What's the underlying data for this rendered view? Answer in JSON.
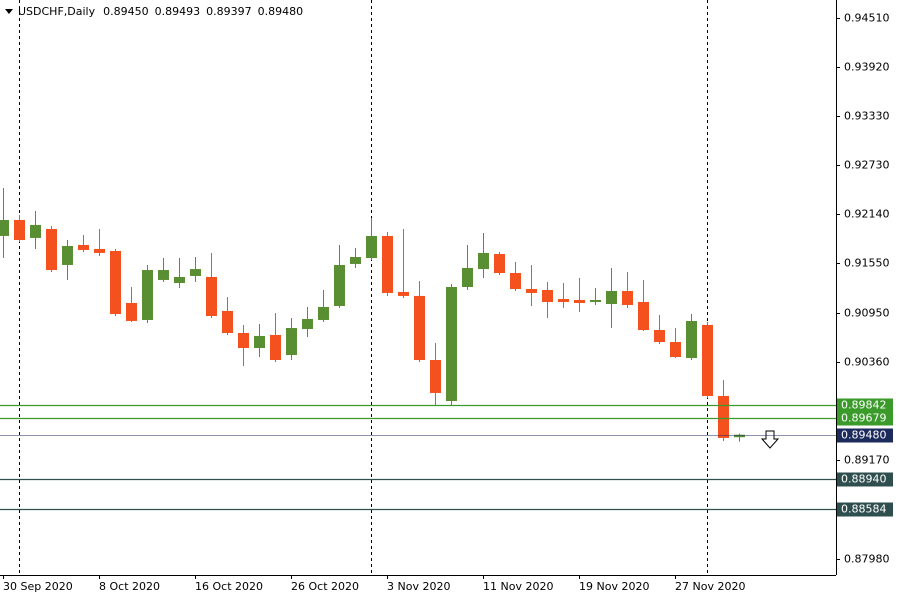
{
  "chart_data": {
    "type": "candlestick",
    "header": {
      "symbol": "USDCHF,Daily",
      "quote": [
        "0.89450",
        "0.89493",
        "0.89397",
        "0.89480"
      ]
    },
    "categories": [
      "30 Sep 2020",
      null,
      null,
      null,
      null,
      null,
      "8 Oct 2020",
      null,
      null,
      null,
      null,
      null,
      "16 Oct 2020",
      null,
      null,
      null,
      null,
      null,
      "26 Oct 2020",
      null,
      null,
      null,
      null,
      null,
      "3 Nov 2020",
      null,
      null,
      null,
      null,
      null,
      "11 Nov 2020",
      null,
      null,
      null,
      null,
      null,
      "19 Nov 2020",
      null,
      null,
      null,
      null,
      null,
      "27 Nov 2020",
      null,
      null,
      null,
      null
    ],
    "open": [
      0.91879,
      0.92072,
      0.91855,
      0.91963,
      0.91529,
      0.9177,
      0.91722,
      0.91698,
      0.9107,
      0.90865,
      0.91348,
      0.91311,
      0.91396,
      0.91384,
      0.90974,
      0.90708,
      0.90527,
      0.90684,
      0.90442,
      0.90756,
      0.90865,
      0.91034,
      0.91541,
      0.91613,
      0.91879,
      0.91203,
      0.91155,
      0.90382,
      0.89887,
      0.91263,
      0.9148,
      0.91661,
      0.91432,
      0.91239,
      0.91227,
      0.91118,
      0.91106,
      0.91082,
      0.91058,
      0.91215,
      0.91082,
      0.90744,
      0.90599,
      0.90406,
      0.90805,
      0.89948,
      0.8945
    ],
    "high": [
      0.92458,
      0.92132,
      0.9218,
      0.91999,
      0.9183,
      0.91891,
      0.91963,
      0.91722,
      0.91263,
      0.91529,
      0.91613,
      0.91613,
      0.91625,
      0.91674,
      0.91143,
      0.90805,
      0.90817,
      0.90949,
      0.90889,
      0.91022,
      0.91227,
      0.9177,
      0.91734,
      0.92096,
      0.91927,
      0.91963,
      0.91336,
      0.90587,
      0.91299,
      0.9177,
      0.91915,
      0.91686,
      0.91565,
      0.91529,
      0.91324,
      0.91311,
      0.91372,
      0.91251,
      0.91493,
      0.91444,
      0.91348,
      0.90925,
      0.90768,
      0.90937,
      0.90841,
      0.90141,
      0.89493
    ],
    "low": [
      0.91613,
      0.91806,
      0.91722,
      0.91444,
      0.91348,
      0.91686,
      0.91637,
      0.90913,
      0.90841,
      0.90829,
      0.91324,
      0.91251,
      0.91324,
      0.90889,
      0.90684,
      0.9031,
      0.90418,
      0.90358,
      0.90382,
      0.9066,
      0.90841,
      0.9101,
      0.91493,
      0.91589,
      0.91155,
      0.9113,
      0.90358,
      0.89827,
      0.89839,
      0.91227,
      0.91372,
      0.91408,
      0.91215,
      0.91034,
      0.90889,
      0.9101,
      0.90961,
      0.91046,
      0.90768,
      0.9101,
      0.90732,
      0.90575,
      0.90406,
      0.90382,
      0.89923,
      0.89404,
      0.89397
    ],
    "close": [
      0.92072,
      0.9183,
      0.92012,
      0.91468,
      0.91758,
      0.9171,
      0.91674,
      0.90937,
      0.90853,
      0.91468,
      0.91468,
      0.91384,
      0.9148,
      0.90913,
      0.90708,
      0.90527,
      0.90672,
      0.90382,
      0.90768,
      0.90877,
      0.91022,
      0.91529,
      0.91625,
      0.91879,
      0.91191,
      0.91155,
      0.90382,
      0.89984,
      0.91263,
      0.91493,
      0.91674,
      0.91432,
      0.91239,
      0.91191,
      0.91082,
      0.91082,
      0.9107,
      0.91106,
      0.91215,
      0.91046,
      0.90744,
      0.90599,
      0.90418,
      0.90853,
      0.89948,
      0.89441,
      0.8948
    ],
    "up_color": "#5a8e32",
    "down_color": "#f4511e",
    "ylim": [
      0.87787,
      0.94727
    ],
    "yticks": [
      {
        "value": 0.9451,
        "label": "0.94510"
      },
      {
        "value": 0.9392,
        "label": "0.93920"
      },
      {
        "value": 0.9333,
        "label": "0.93330"
      },
      {
        "value": 0.9273,
        "label": "0.92730"
      },
      {
        "value": 0.9214,
        "label": "0.92140"
      },
      {
        "value": 0.9155,
        "label": "0.91550"
      },
      {
        "value": 0.9095,
        "label": "0.90950"
      },
      {
        "value": 0.9036,
        "label": "0.90360"
      },
      {
        "value": 0.8917,
        "label": "0.89170"
      },
      {
        "value": 0.8798,
        "label": "0.87980"
      }
    ],
    "levels": [
      {
        "value": 0.89842,
        "label": "0.89842",
        "color": "#3a9a2a"
      },
      {
        "value": 0.89679,
        "label": "0.89679",
        "color": "#3a9a2a"
      },
      {
        "value": 0.8948,
        "label": "0.89480",
        "color": "#1c2b5c"
      },
      {
        "value": 0.8894,
        "label": "0.88940",
        "color": "#2f4f4f"
      },
      {
        "value": 0.88584,
        "label": "0.88584",
        "color": "#2f4f4f"
      }
    ]
  }
}
